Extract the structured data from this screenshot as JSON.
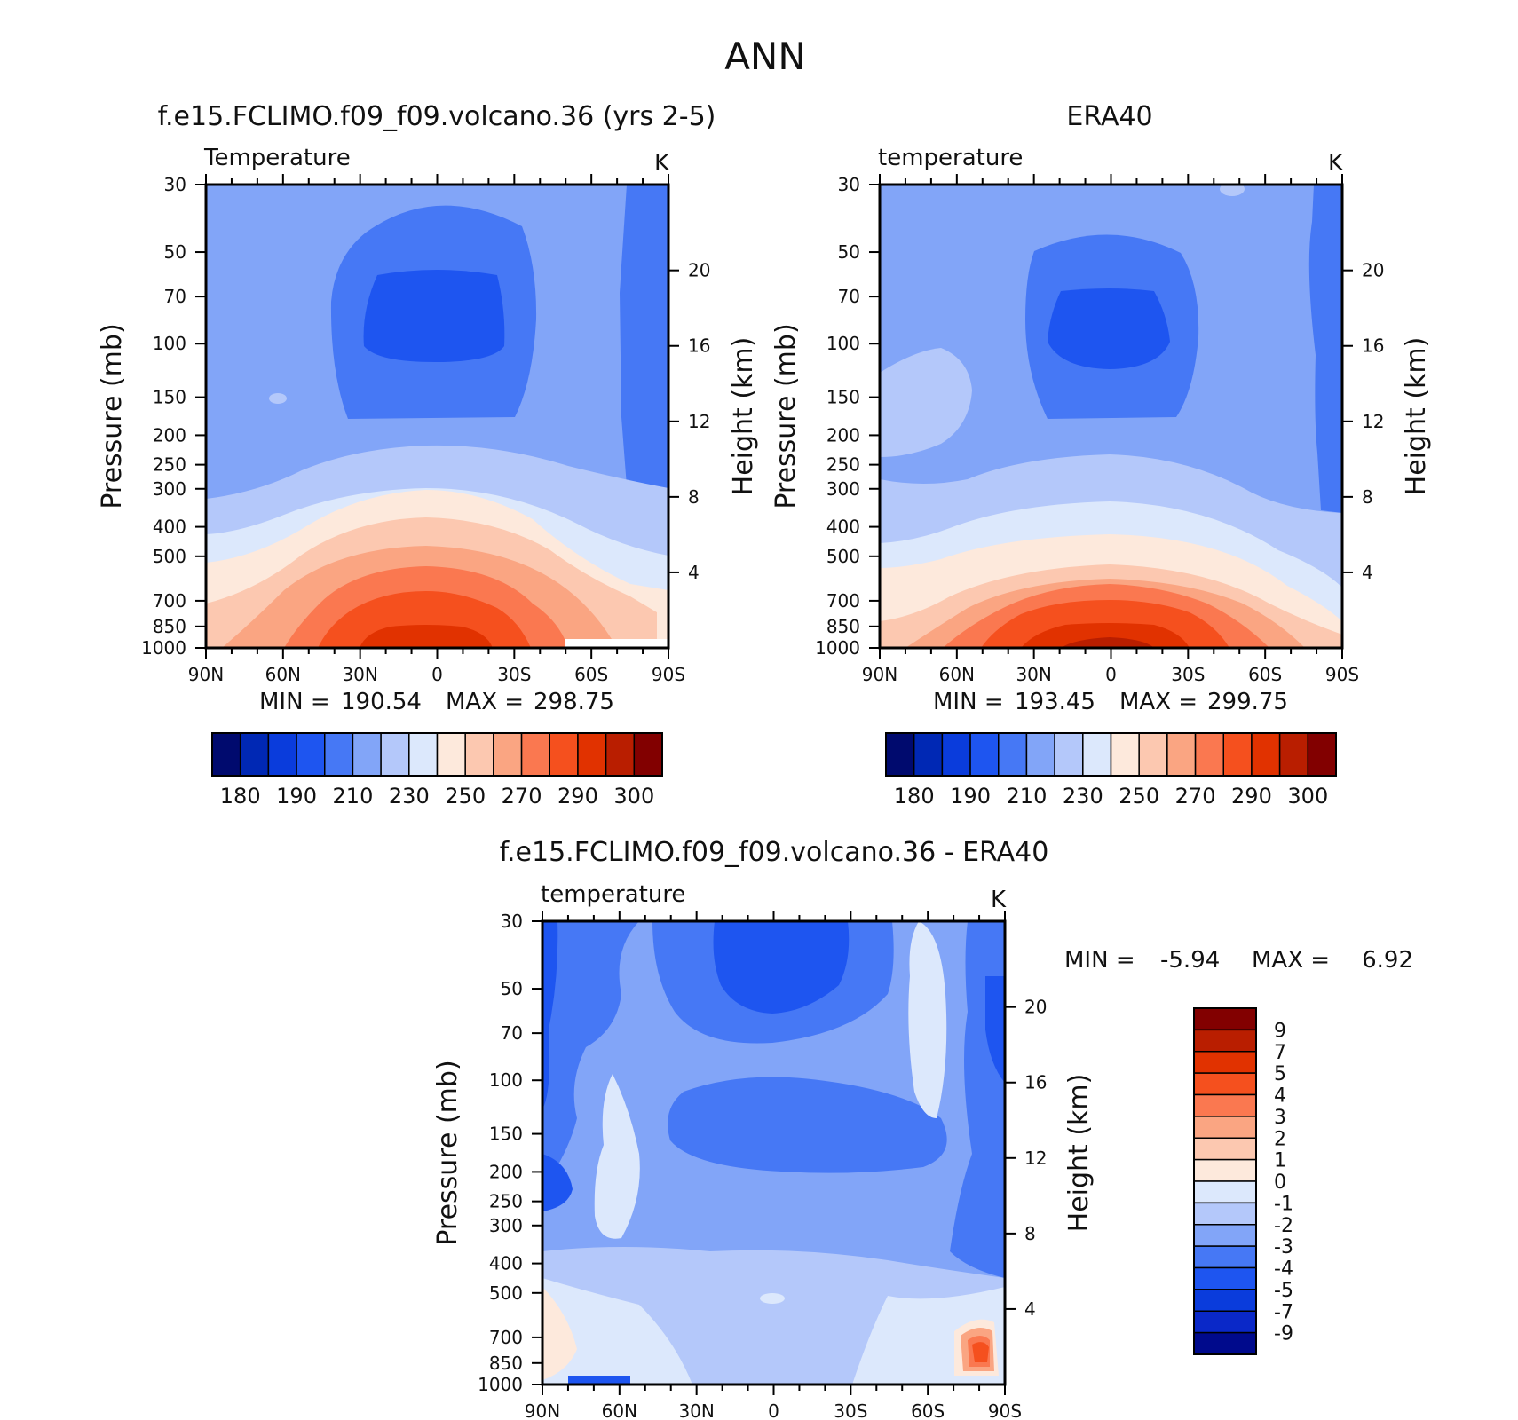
{
  "figure": {
    "title": "ANN"
  },
  "colors": {
    "abs_scale": [
      "#000a6e",
      "#0028b4",
      "#0a3cdc",
      "#1e55f0",
      "#4678f5",
      "#82a5f8",
      "#b4c8fa",
      "#dce8fc",
      "#fde9dc",
      "#fcc8b0",
      "#faa582",
      "#fa7850",
      "#f5501e",
      "#e13200",
      "#b91e00",
      "#820000"
    ],
    "diff_scale": [
      "#000a8c",
      "#0a28c8",
      "#0a3cdc",
      "#1e55f0",
      "#4678f5",
      "#82a5f8",
      "#b4c8fa",
      "#dce8fc",
      "#fde9dc",
      "#fcc8b0",
      "#faa582",
      "#fa7850",
      "#f5501e",
      "#e13200",
      "#b91e00",
      "#820000"
    ]
  },
  "chart_data": [
    {
      "type": "heatmap",
      "title": "f.e15.FCLIMO.f09_f09.volcano.36 (yrs 2-5)",
      "left_label": "Temperature",
      "units": "K",
      "ylabel": "Pressure (mb)",
      "y2label": "Height (km)",
      "xticks": [
        "90N",
        "60N",
        "30N",
        "0",
        "30S",
        "60S",
        "90S"
      ],
      "yticks": [
        "30",
        "50",
        "70",
        "100",
        "150",
        "200",
        "250",
        "300",
        "400",
        "500",
        "700",
        "850",
        "1000"
      ],
      "y2ticks": [
        "20",
        "16",
        "12",
        "8",
        "4"
      ],
      "min_label": "MIN =",
      "min_value": "190.54",
      "max_label": "MAX =",
      "max_value": "298.75",
      "colorbar_labels": [
        "180",
        "190",
        "210",
        "230",
        "250",
        "270",
        "290",
        "300"
      ]
    },
    {
      "type": "heatmap",
      "title": "ERA40",
      "left_label": "temperature",
      "units": "K",
      "ylabel": "Pressure (mb)",
      "y2label": "Height (km)",
      "xticks": [
        "90N",
        "60N",
        "30N",
        "0",
        "30S",
        "60S",
        "90S"
      ],
      "yticks": [
        "30",
        "50",
        "70",
        "100",
        "150",
        "200",
        "250",
        "300",
        "400",
        "500",
        "700",
        "850",
        "1000"
      ],
      "y2ticks": [
        "20",
        "16",
        "12",
        "8",
        "4"
      ],
      "min_label": "MIN =",
      "min_value": "193.45",
      "max_label": "MAX =",
      "max_value": "299.75",
      "colorbar_labels": [
        "180",
        "190",
        "210",
        "230",
        "250",
        "270",
        "290",
        "300"
      ]
    },
    {
      "type": "heatmap",
      "title": "f.e15.FCLIMO.f09_f09.volcano.36 - ERA40",
      "left_label": "temperature",
      "units": "K",
      "ylabel": "Pressure (mb)",
      "y2label": "Height (km)",
      "xticks": [
        "90N",
        "60N",
        "30N",
        "0",
        "30S",
        "60S",
        "90S"
      ],
      "yticks": [
        "30",
        "50",
        "70",
        "100",
        "150",
        "200",
        "250",
        "300",
        "400",
        "500",
        "700",
        "850",
        "1000"
      ],
      "y2ticks": [
        "20",
        "16",
        "12",
        "8",
        "4"
      ],
      "min_label": "MIN =",
      "min_value": "-5.94",
      "max_label": "MAX =",
      "max_value": "6.92",
      "colorbar_labels": [
        "9",
        "7",
        "5",
        "4",
        "3",
        "2",
        "1",
        "0",
        "-1",
        "-2",
        "-3",
        "-4",
        "-5",
        "-7",
        "-9"
      ]
    }
  ]
}
